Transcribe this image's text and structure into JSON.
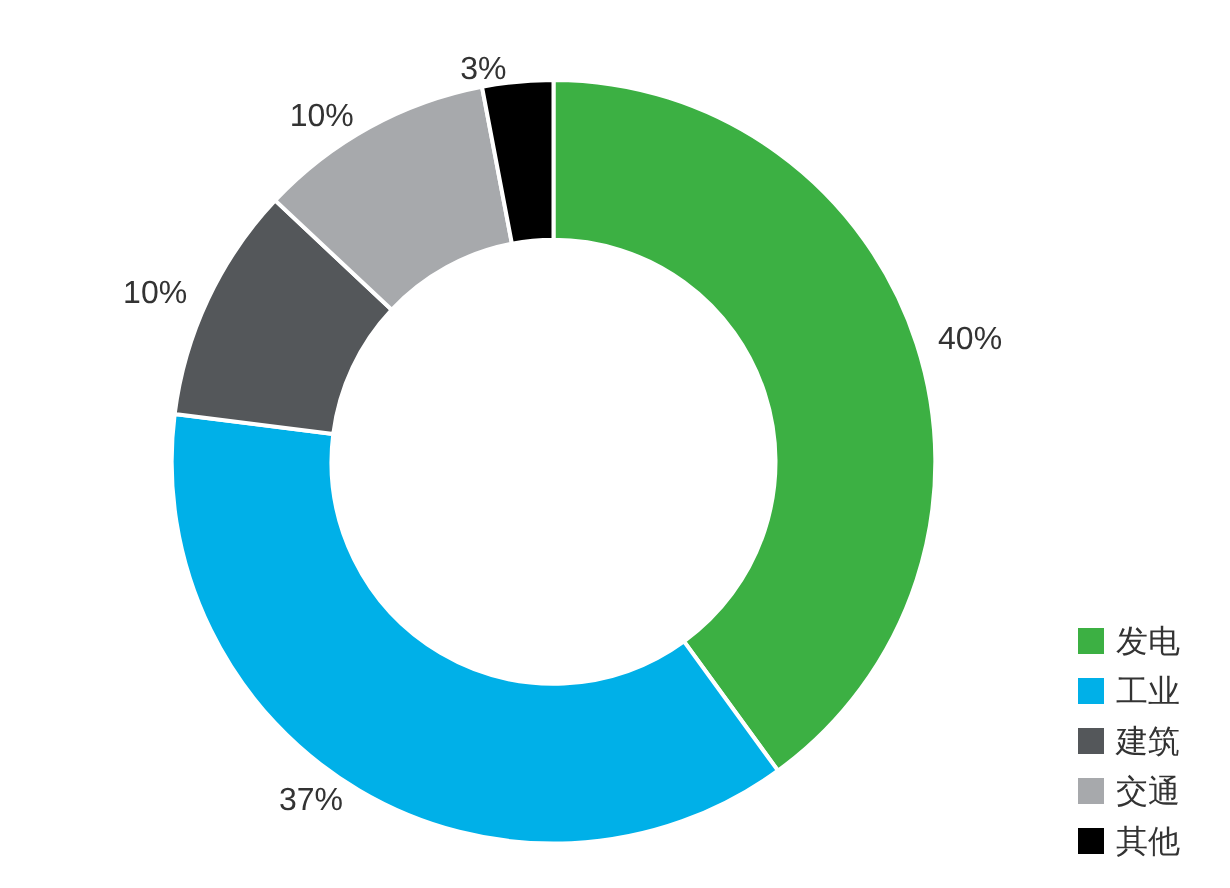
{
  "chart_data": {
    "type": "donut",
    "categories": [
      "发电",
      "工业",
      "建筑",
      "交通",
      "其他"
    ],
    "values": [
      40,
      37,
      10,
      10,
      3
    ],
    "colors": [
      "#3cb043",
      "#00b0e8",
      "#54575a",
      "#a7a9ac",
      "#000000"
    ],
    "value_labels": [
      "40%",
      "37%",
      "10%",
      "10%",
      "3%"
    ],
    "legend": "bottom right"
  }
}
